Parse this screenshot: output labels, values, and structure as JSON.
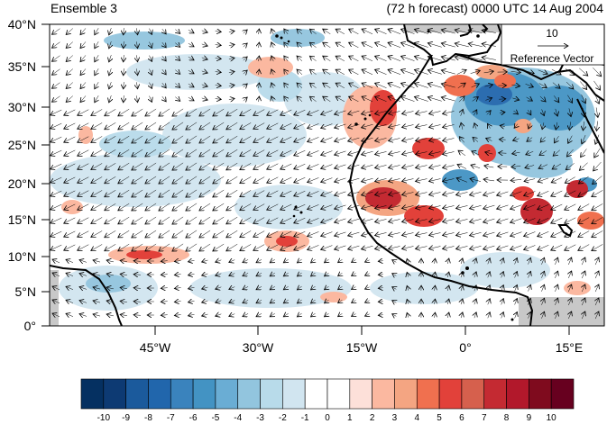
{
  "title_left": "Ensemble 3",
  "title_right": "(72 h forecast) 0000 UTC 14 Aug 2004",
  "lat_labels": [
    "40°N",
    "35°N",
    "30°N",
    "25°N",
    "20°N",
    "15°N",
    "10°N",
    "5°N",
    "0°"
  ],
  "lon_labels": [
    "45°W",
    "30°W",
    "15°W",
    "0°",
    "15°E"
  ],
  "reference_vector": {
    "magnitude": "10",
    "label": "Reference Vector"
  },
  "colorbar": {
    "labels": [
      "-10",
      "-9",
      "-8",
      "-7",
      "-6",
      "-5",
      "-4",
      "-3",
      "-2",
      "-1",
      "0",
      "1",
      "2",
      "3",
      "4",
      "5",
      "6",
      "7",
      "8",
      "9",
      "10"
    ],
    "colors": [
      "#053061",
      "#0d3a73",
      "#1b5a9c",
      "#2166ac",
      "#3a83bd",
      "#4393c3",
      "#6aadd4",
      "#92c5de",
      "#b8dbea",
      "#d1e5f0",
      "#ffffff",
      "#ffffff",
      "#fde0d9",
      "#fbb8a0",
      "#f4a582",
      "#f0704f",
      "#e2413a",
      "#d6604d",
      "#c42a32",
      "#b2182b",
      "#7f0b1e",
      "#67001f"
    ]
  },
  "colors": {
    "land_line": "#000000",
    "vector": "#000000",
    "missing": "#c8c8c8"
  }
}
